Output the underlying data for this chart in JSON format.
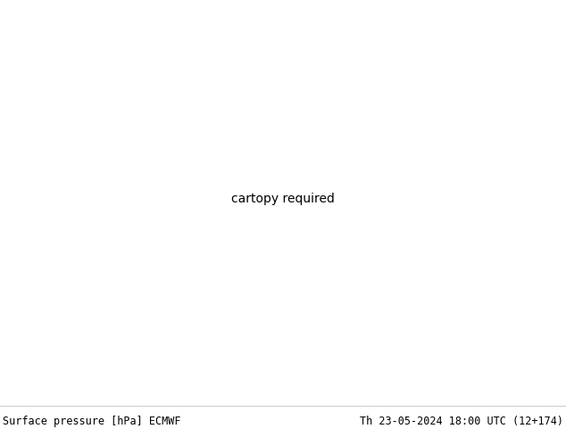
{
  "title_left": "Surface pressure [hPa] ECMWF",
  "title_right": "Th 23-05-2024 18:00 UTC (12+174)",
  "bg_color": "#ffffff",
  "fig_width": 6.34,
  "fig_height": 4.9,
  "dpi": 100,
  "bottom_bar_height": 0.072,
  "font_size_title": 8.5,
  "font_family": "monospace",
  "lon_min": 25,
  "lon_max": 155,
  "lat_min": -5,
  "lat_max": 70,
  "ocean_color": "#b8d8e8",
  "land_color_low": "#d4e8c0",
  "land_color_high": "#c8b870",
  "border_color": "#888888"
}
